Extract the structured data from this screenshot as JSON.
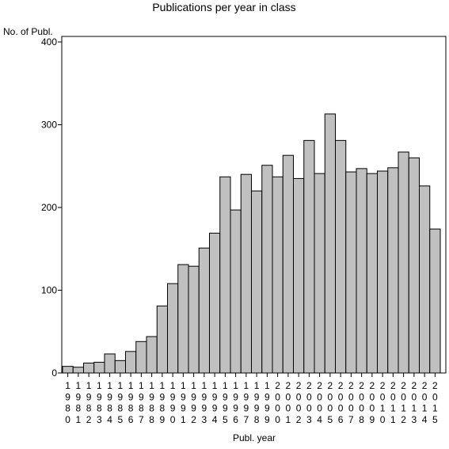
{
  "chart_data": {
    "type": "bar",
    "title": "Publications per year in class",
    "ylabel": "No. of Publ.",
    "xlabel": "Publ. year",
    "ylim": [
      0,
      400
    ],
    "yticks": [
      0,
      100,
      200,
      300,
      400
    ],
    "grid": false,
    "legend": "none",
    "colors": {
      "bar_fill": "#c0c0c0",
      "bar_stroke": "#000000",
      "axis": "#000000",
      "background": "#ffffff"
    },
    "categories": [
      "1980",
      "1981",
      "1982",
      "1983",
      "1984",
      "1985",
      "1986",
      "1987",
      "1988",
      "1989",
      "1990",
      "1991",
      "1992",
      "1993",
      "1994",
      "1995",
      "1996",
      "1997",
      "1998",
      "1999",
      "2000",
      "2001",
      "2002",
      "2003",
      "2004",
      "2005",
      "2006",
      "2007",
      "2008",
      "2009",
      "2010",
      "2011",
      "2012",
      "2013",
      "2014",
      "2015"
    ],
    "values": [
      8,
      7,
      12,
      13,
      23,
      15,
      26,
      38,
      44,
      81,
      108,
      131,
      129,
      151,
      169,
      237,
      197,
      240,
      220,
      251,
      237,
      263,
      235,
      281,
      241,
      313,
      281,
      243,
      247,
      241,
      244,
      248,
      267,
      260,
      226,
      174
    ]
  }
}
